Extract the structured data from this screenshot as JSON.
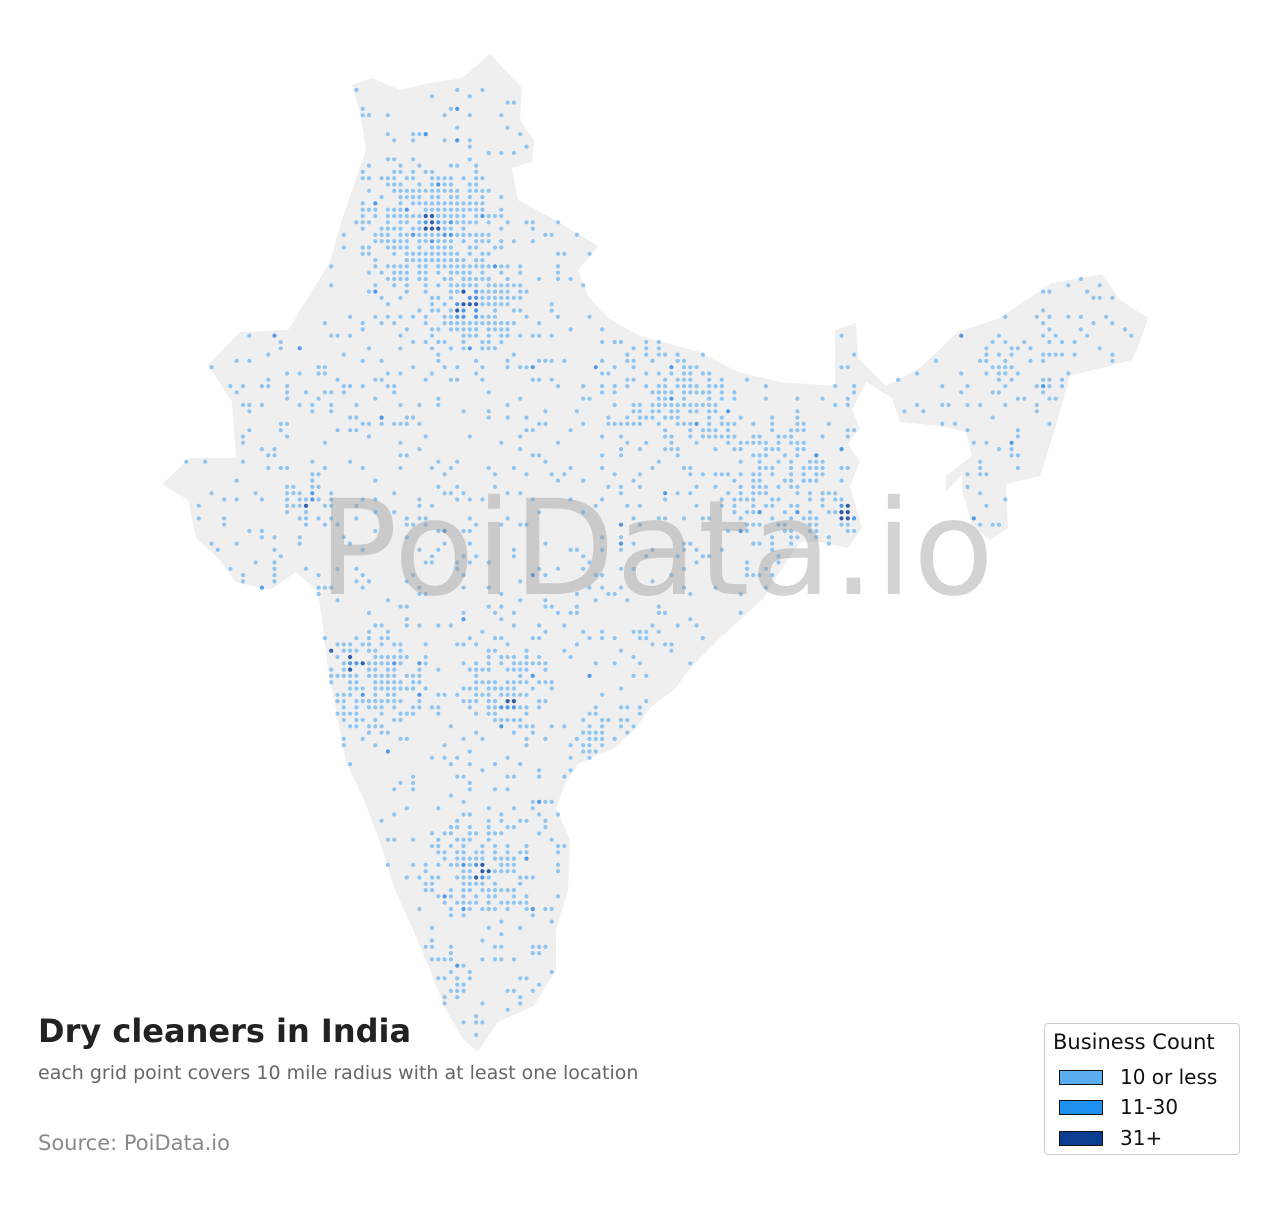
{
  "title": "Dry cleaners in India",
  "subtitle": "each grid point covers 10 mile radius with at least one location",
  "source": "Source: PoiData.io",
  "watermark": "PoiData.io",
  "legend": {
    "title": "Business Count",
    "items": [
      {
        "label": "10 or less",
        "color": "#5aaef0"
      },
      {
        "label": "11-30",
        "color": "#1e90f0"
      },
      {
        "label": "31+",
        "color": "#0b3d91"
      }
    ]
  },
  "colors": {
    "land": "#efefef",
    "low": "#8ec5f2",
    "mid": "#4f9ae8",
    "high": "#2f5da8"
  },
  "chart_data": {
    "type": "map",
    "region": "India",
    "grid_radius_miles": 10,
    "categories": [
      "10 or less",
      "11-30",
      "31+"
    ]
  }
}
